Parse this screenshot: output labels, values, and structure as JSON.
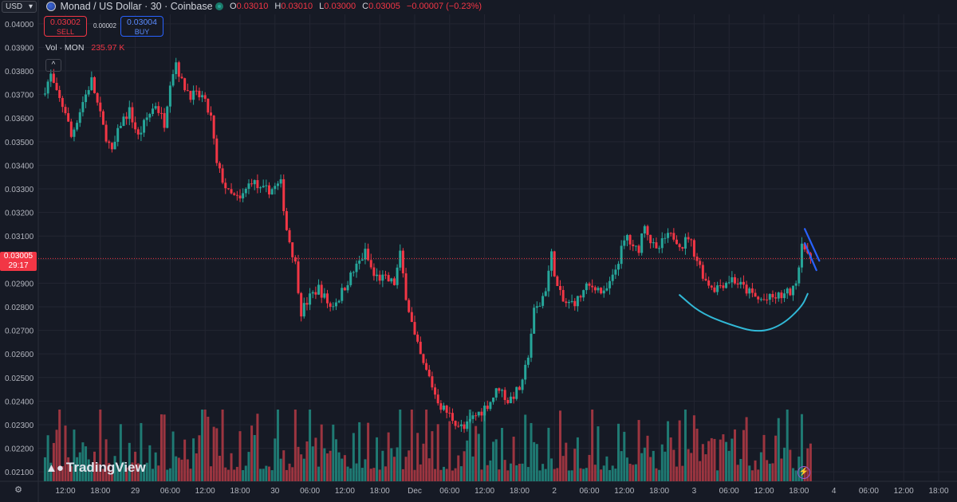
{
  "header": {
    "currency": "USD",
    "title": "Monad / US Dollar · 30 · Coinbase",
    "ohlc": [
      {
        "key": "O",
        "value": "0.03010"
      },
      {
        "key": "H",
        "value": "0.03010"
      },
      {
        "key": "L",
        "value": "0.03000"
      },
      {
        "key": "C",
        "value": "0.03005"
      }
    ],
    "change": "−0.00007 (−0.23%)"
  },
  "trade": {
    "sell_price": "0.03002",
    "sell_label": "SELL",
    "spread": "0.00002",
    "buy_price": "0.03004",
    "buy_label": "BUY"
  },
  "volume": {
    "label": "Vol · MON",
    "value": "235.97 K"
  },
  "price_marker": {
    "price": "0.03005",
    "countdown": "29:17"
  },
  "brand": {
    "name": "TradingView"
  },
  "colors": {
    "background": "#161a25",
    "grid": "#232632",
    "up": "#26a69a",
    "down": "#f23645",
    "up_volume": "#1f7a73",
    "down_volume": "#9c3540",
    "axis_text": "#b2b5be",
    "drawing_cup": "#31b8d6",
    "drawing_flag": "#2962ff"
  },
  "icons": {
    "currency_dropdown": "chevron-down-icon",
    "collapse": "chevron-up-icon",
    "settings": "gear-icon",
    "lightning": "lightning-icon",
    "live": "live-dot-icon",
    "flag": "us-flag-icon"
  },
  "chart_data": {
    "type": "candlestick",
    "title": "",
    "y_axis": {
      "ticks": [
        "0.04000",
        "0.03900",
        "0.03800",
        "0.03700",
        "0.03600",
        "0.03500",
        "0.03400",
        "0.03300",
        "0.03200",
        "0.03100",
        "0.03000",
        "0.02900",
        "0.02800",
        "0.02700",
        "0.02600",
        "0.02500",
        "0.02400",
        "0.02300",
        "0.02200",
        "0.02100"
      ],
      "range": [
        0.0206,
        0.0404
      ]
    },
    "x_axis": {
      "labels": [
        "12:00",
        "18:00",
        "29",
        "06:00",
        "12:00",
        "18:00",
        "30",
        "06:00",
        "12:00",
        "18:00",
        "Dec",
        "06:00",
        "12:00",
        "18:00",
        "2",
        "06:00",
        "12:00",
        "18:00",
        "3",
        "06:00",
        "12:00",
        "18:00",
        "4",
        "06:00",
        "12:00",
        "18:00"
      ],
      "label_values": [
        12,
        18,
        24,
        30,
        36,
        42,
        48,
        54,
        60,
        66,
        72,
        78,
        84,
        90,
        96,
        102,
        108,
        114,
        120,
        126,
        132,
        138,
        144,
        150,
        156,
        162
      ]
    },
    "x_unit": "hours since Nov 28 00:00 (candles every 0.5 h)",
    "price_path": [
      [
        8.5,
        0.037
      ],
      [
        10,
        0.0378
      ],
      [
        11,
        0.037
      ],
      [
        12.5,
        0.0363
      ],
      [
        13.5,
        0.0352
      ],
      [
        15.5,
        0.0367
      ],
      [
        17,
        0.0376
      ],
      [
        19,
        0.0356
      ],
      [
        20.5,
        0.0345
      ],
      [
        22,
        0.0358
      ],
      [
        23.5,
        0.0363
      ],
      [
        25,
        0.0352
      ],
      [
        26.5,
        0.036
      ],
      [
        28,
        0.0366
      ],
      [
        29.5,
        0.0358
      ],
      [
        30.5,
        0.0376
      ],
      [
        31.5,
        0.0384
      ],
      [
        32.5,
        0.0375
      ],
      [
        34,
        0.037
      ],
      [
        36,
        0.0369
      ],
      [
        37.5,
        0.036
      ],
      [
        38.5,
        0.034
      ],
      [
        40.5,
        0.0328
      ],
      [
        42.5,
        0.0325
      ],
      [
        44.5,
        0.0334
      ],
      [
        46,
        0.0329
      ],
      [
        48,
        0.033
      ],
      [
        49.5,
        0.0332
      ],
      [
        50.5,
        0.0313
      ],
      [
        52,
        0.0298
      ],
      [
        53,
        0.0278
      ],
      [
        54.5,
        0.0284
      ],
      [
        56,
        0.0288
      ],
      [
        58,
        0.028
      ],
      [
        59.5,
        0.0284
      ],
      [
        61,
        0.0291
      ],
      [
        62.5,
        0.0297
      ],
      [
        64,
        0.0303
      ],
      [
        65.5,
        0.0293
      ],
      [
        67,
        0.0292
      ],
      [
        68,
        0.0291
      ],
      [
        69,
        0.029
      ],
      [
        70,
        0.0302
      ],
      [
        71,
        0.0285
      ],
      [
        72.5,
        0.0267
      ],
      [
        74,
        0.0255
      ],
      [
        75,
        0.025
      ],
      [
        76,
        0.0243
      ],
      [
        77,
        0.0238
      ],
      [
        78.5,
        0.0234
      ],
      [
        80,
        0.023
      ],
      [
        81,
        0.0228
      ],
      [
        82.5,
        0.0233
      ],
      [
        84,
        0.0236
      ],
      [
        85.5,
        0.024
      ],
      [
        87,
        0.0246
      ],
      [
        88.5,
        0.024
      ],
      [
        90,
        0.0244
      ],
      [
        91,
        0.0247
      ],
      [
        92,
        0.026
      ],
      [
        93,
        0.0278
      ],
      [
        94,
        0.0281
      ],
      [
        95,
        0.0288
      ],
      [
        96,
        0.0302
      ],
      [
        97,
        0.0288
      ],
      [
        98,
        0.0282
      ],
      [
        99,
        0.0281
      ],
      [
        100.5,
        0.0283
      ],
      [
        102,
        0.0288
      ],
      [
        103.5,
        0.0289
      ],
      [
        105,
        0.0285
      ],
      [
        106.5,
        0.0292
      ],
      [
        108,
        0.0304
      ],
      [
        109,
        0.031
      ],
      [
        110,
        0.0304
      ],
      [
        111,
        0.0305
      ],
      [
        112,
        0.0316
      ],
      [
        113,
        0.0308
      ],
      [
        114,
        0.0303
      ],
      [
        115.5,
        0.0309
      ],
      [
        117,
        0.031
      ],
      [
        118.5,
        0.0306
      ],
      [
        119.5,
        0.031
      ],
      [
        121,
        0.03
      ],
      [
        122.5,
        0.0291
      ],
      [
        124,
        0.0288
      ],
      [
        125.5,
        0.029
      ],
      [
        127,
        0.0292
      ],
      [
        128.5,
        0.0289
      ],
      [
        130,
        0.0286
      ],
      [
        131.5,
        0.0283
      ],
      [
        133,
        0.0283
      ],
      [
        134.5,
        0.0284
      ],
      [
        136,
        0.0285
      ],
      [
        137.5,
        0.0287
      ],
      [
        138.5,
        0.0297
      ],
      [
        139,
        0.0309
      ],
      [
        140,
        0.03005
      ]
    ],
    "last_price": 0.03005,
    "drawings": [
      {
        "kind": "curve",
        "points": [
          [
            117.5,
            0.0285
          ],
          [
            121,
            0.02775
          ],
          [
            126,
            0.02725
          ],
          [
            131,
            0.0269
          ],
          [
            135,
            0.0272
          ],
          [
            138.5,
            0.028
          ],
          [
            139.5,
            0.02855
          ]
        ]
      },
      {
        "kind": "line",
        "points": [
          [
            139,
            0.0313
          ],
          [
            141.5,
            0.02995
          ]
        ]
      },
      {
        "kind": "line",
        "points": [
          [
            139,
            0.0307
          ],
          [
            141,
            0.02955
          ]
        ]
      }
    ]
  }
}
